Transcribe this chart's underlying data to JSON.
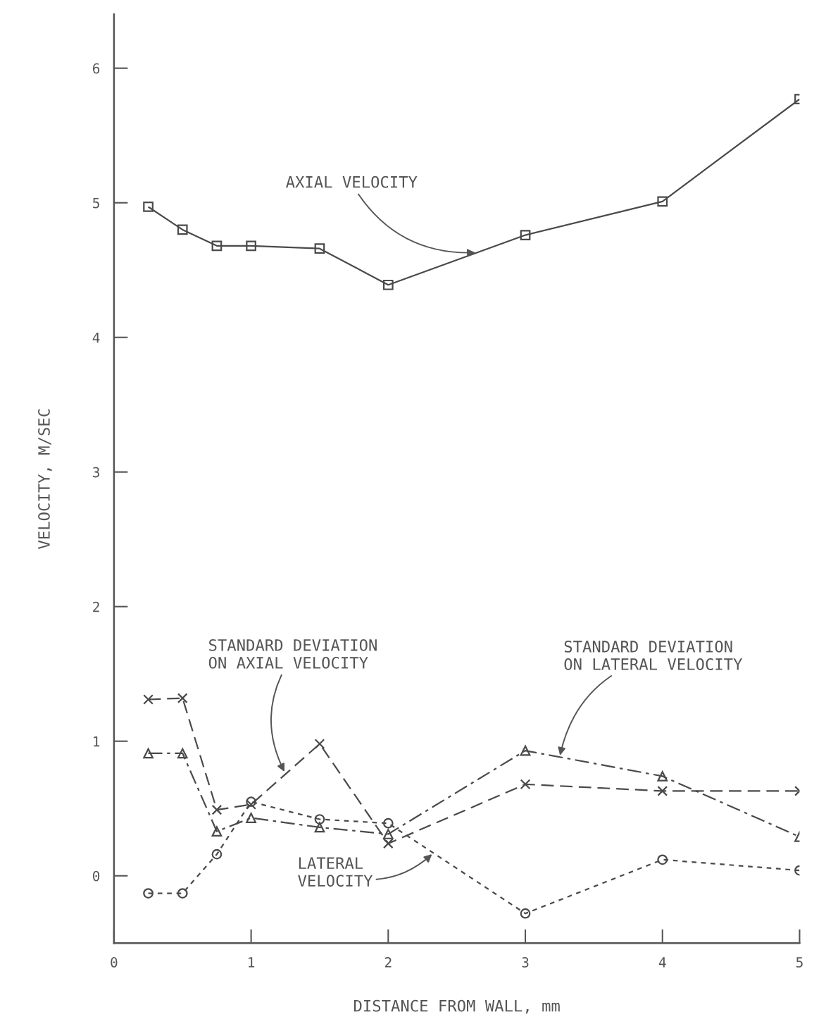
{
  "chart_data": {
    "type": "line",
    "xlabel": "DISTANCE FROM WALL, mm",
    "ylabel": "VELOCITY, M/SEC",
    "x": [
      0.25,
      0.5,
      0.75,
      1.0,
      1.5,
      2.0,
      3.0,
      4.0,
      5.0
    ],
    "series": [
      {
        "color": "#4a4a4a",
        "marker": "square",
        "line_style": "solid",
        "values": [
          4.97,
          4.8,
          4.68,
          4.68,
          4.66,
          4.39,
          4.76,
          5.01,
          5.77
        ]
      },
      {
        "color": "#4a4a4a",
        "marker": "cross",
        "line_style": "dashed",
        "values": [
          1.31,
          1.32,
          0.49,
          0.53,
          0.98,
          0.24,
          0.68,
          0.63,
          0.63
        ]
      },
      {
        "color": "#4a4a4a",
        "marker": "triangle",
        "line_style": "dashdot",
        "values": [
          0.91,
          0.91,
          0.33,
          0.43,
          0.36,
          0.31,
          0.93,
          0.74,
          0.29
        ]
      },
      {
        "color": "#4a4a4a",
        "marker": "circle",
        "line_style": "dotted",
        "values": [
          -0.13,
          -0.13,
          0.16,
          0.55,
          0.42,
          0.39,
          -0.28,
          0.12,
          0.04
        ]
      }
    ],
    "xlim": [
      0,
      5
    ],
    "xticks": [
      0,
      1,
      2,
      3,
      4,
      5
    ],
    "ylim": [
      -0.5,
      6.4
    ],
    "yticks": [
      0,
      1,
      2,
      3,
      4,
      5,
      6
    ],
    "grid": false,
    "legend": false,
    "annotations": [
      {
        "text": "AXIAL VELOCITY",
        "x": 2.65,
        "y": 4.63
      },
      {
        "text": "STANDARD DEVIATION\nON AXIAL VELOCITY",
        "x": 1.25,
        "y": 0.76
      },
      {
        "text": "STANDARD DEVIATION\nON LATERAL VELOCITY",
        "x": 3.25,
        "y": 0.88
      },
      {
        "text": "LATERAL\nVELOCITY",
        "x": 2.33,
        "y": 0.17
      }
    ]
  }
}
